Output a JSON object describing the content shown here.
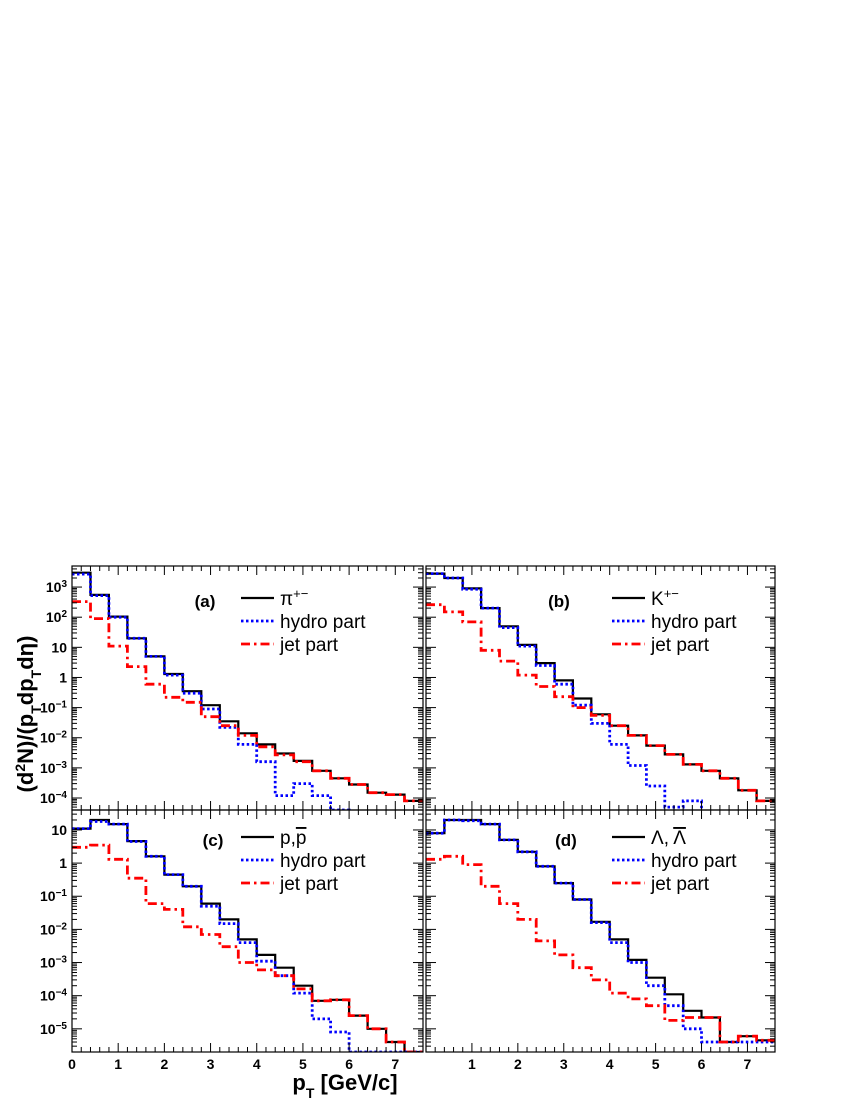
{
  "chart_data": {
    "type": "line",
    "layout": "2x2 panels, shared x axis, step histograms",
    "xlabel": "p_T [GeV/c]",
    "ylabel": "(d²N)/(p_T dp_T dη)",
    "xlim": [
      0,
      7.6
    ],
    "x_ticks": [
      "0",
      "1",
      "2",
      "3",
      "4",
      "5",
      "6",
      "7"
    ],
    "yscale": "log",
    "bin_edges": [
      0,
      0.4,
      0.8,
      1.2,
      1.6,
      2.0,
      2.4,
      2.8,
      3.2,
      3.6,
      4.0,
      4.4,
      4.8,
      5.2,
      5.6,
      6.0,
      6.4,
      6.8,
      7.2,
      7.6
    ],
    "series_style": [
      {
        "key": "total",
        "color": "#000000",
        "dash": "solid"
      },
      {
        "key": "hydro",
        "color": "#0000ff",
        "dash": "dotted"
      },
      {
        "key": "jet",
        "color": "#ff0000",
        "dash": "dashdot"
      }
    ],
    "panels": [
      {
        "id": "a",
        "label": "(a)",
        "legend": {
          "total": "π",
          "total_sup": "+−",
          "hydro": "hydro part",
          "jet": "jet part"
        },
        "ylim": [
          4e-05,
          5000
        ],
        "y_ticks": [
          {
            "v": 1000,
            "b": "10",
            "e": "3"
          },
          {
            "v": 100,
            "b": "10",
            "e": "2"
          },
          {
            "v": 10,
            "b": "10",
            "e": ""
          },
          {
            "v": 1,
            "b": "1",
            "e": ""
          },
          {
            "v": 0.1,
            "b": "10",
            "e": "−1"
          },
          {
            "v": 0.01,
            "b": "10",
            "e": "−2"
          },
          {
            "v": 0.001,
            "b": "10",
            "e": "−3"
          },
          {
            "v": 0.0001,
            "b": "10",
            "e": "−4"
          }
        ],
        "series": [
          {
            "key": "total",
            "name": "π+−",
            "values": [
              3000,
              550,
              105,
              20,
              5,
              1.3,
              0.35,
              0.12,
              0.035,
              0.014,
              0.006,
              0.003,
              0.0017,
              0.0008,
              0.00045,
              0.00028,
              0.00015,
              0.00013,
              8e-05
            ]
          },
          {
            "key": "hydro",
            "name": "hydro part",
            "values": [
              2700,
              520,
              100,
              20,
              5,
              1.2,
              0.3,
              0.09,
              0.022,
              0.006,
              0.0016,
              0.00012,
              0.0003,
              0.00012,
              3e-05,
              null,
              null,
              null,
              null
            ]
          },
          {
            "key": "jet",
            "name": "jet part",
            "values": [
              330,
              90,
              11,
              2.3,
              0.6,
              0.22,
              0.15,
              0.05,
              0.025,
              0.012,
              0.005,
              0.0027,
              0.0016,
              0.0008,
              0.00045,
              0.00028,
              0.00015,
              0.00013,
              8e-05
            ]
          }
        ]
      },
      {
        "id": "b",
        "label": "(b)",
        "legend": {
          "total": "K",
          "total_sup": "+−",
          "hydro": "hydro part",
          "jet": "jet part"
        },
        "ylim": [
          4e-05,
          5000
        ],
        "y_ticks": [],
        "series": [
          {
            "key": "total",
            "name": "K+−",
            "values": [
              2800,
              2000,
              900,
              200,
              50,
              12,
              3,
              0.8,
              0.2,
              0.06,
              0.025,
              0.012,
              0.0055,
              0.0028,
              0.0013,
              0.0008,
              0.00045,
              0.00018,
              8e-05
            ]
          },
          {
            "key": "hydro",
            "name": "hydro part",
            "values": [
              2800,
              2000,
              850,
              200,
              45,
              11,
              2.5,
              0.6,
              0.12,
              0.03,
              0.006,
              0.0012,
              0.00025,
              5e-05,
              8e-05,
              null,
              null,
              null,
              null
            ]
          },
          {
            "key": "jet",
            "name": "jet part",
            "values": [
              260,
              150,
              70,
              8,
              3.5,
              1.2,
              0.5,
              0.23,
              0.1,
              0.055,
              0.025,
              0.012,
              0.0055,
              0.0028,
              0.0013,
              0.0008,
              0.00045,
              0.00018,
              8e-05
            ]
          }
        ]
      },
      {
        "id": "c",
        "label": "(c)",
        "legend": {
          "total": "p,",
          "total_bar": "p",
          "hydro": "hydro part",
          "jet": "jet part"
        },
        "ylim": [
          2e-06,
          40
        ],
        "y_ticks": [
          {
            "v": 10,
            "b": "10",
            "e": ""
          },
          {
            "v": 1,
            "b": "1",
            "e": ""
          },
          {
            "v": 0.1,
            "b": "10",
            "e": "−1"
          },
          {
            "v": 0.01,
            "b": "10",
            "e": "−2"
          },
          {
            "v": 0.001,
            "b": "10",
            "e": "−3"
          },
          {
            "v": 0.0001,
            "b": "10",
            "e": "−4"
          },
          {
            "v": 1e-05,
            "b": "10",
            "e": "−5"
          }
        ],
        "series": [
          {
            "key": "total",
            "name": "p,p̄",
            "values": [
              11,
              20,
              15,
              4.6,
              1.6,
              0.45,
              0.2,
              0.06,
              0.02,
              0.005,
              0.0017,
              0.0007,
              0.0002,
              7e-05,
              7.5e-05,
              2.5e-05,
              1e-05,
              4e-06,
              2e-06
            ]
          },
          {
            "key": "hydro",
            "name": "hydro part",
            "values": [
              11,
              18,
              15,
              4.5,
              1.6,
              0.45,
              0.2,
              0.05,
              0.015,
              0.004,
              0.0011,
              0.0004,
              0.00012,
              2e-05,
              8e-06,
              2e-06,
              2e-06,
              2e-06,
              2e-06
            ]
          },
          {
            "key": "jet",
            "name": "jet part",
            "values": [
              3,
              3.5,
              1.3,
              0.35,
              0.06,
              0.04,
              0.012,
              0.007,
              0.003,
              0.001,
              0.0006,
              0.0004,
              0.00016,
              7e-05,
              7.5e-05,
              2.5e-05,
              1e-05,
              4e-06,
              2e-06
            ]
          }
        ]
      },
      {
        "id": "d",
        "label": "(d)",
        "legend": {
          "total": "Λ, ",
          "total_bar": "Λ",
          "hydro": "hydro part",
          "jet": "jet part"
        },
        "ylim": [
          2e-06,
          40
        ],
        "y_ticks": [],
        "series": [
          {
            "key": "total",
            "name": "Λ,Λ̄",
            "values": [
              8,
              20,
              20,
              15,
              5,
              2.2,
              0.8,
              0.25,
              0.08,
              0.017,
              0.005,
              0.0012,
              0.00035,
              0.00011,
              3.5e-05,
              2.2e-05,
              4e-06,
              6e-06,
              4.5e-06
            ]
          },
          {
            "key": "hydro",
            "name": "hydro part",
            "values": [
              8,
              20,
              19,
              15,
              5,
              2.2,
              0.8,
              0.25,
              0.08,
              0.016,
              0.004,
              0.001,
              0.0002,
              5e-05,
              1e-05,
              4e-06,
              4e-06,
              4e-06,
              4e-06
            ]
          },
          {
            "key": "jet",
            "name": "jet part",
            "values": [
              1.3,
              1.6,
              0.9,
              0.2,
              0.06,
              0.02,
              0.0045,
              0.0017,
              0.0007,
              0.0003,
              0.00012,
              8e-05,
              5e-05,
              1.8e-05,
              2.2e-05,
              2.2e-05,
              4e-06,
              6e-06,
              4.5e-06
            ]
          }
        ]
      }
    ]
  }
}
